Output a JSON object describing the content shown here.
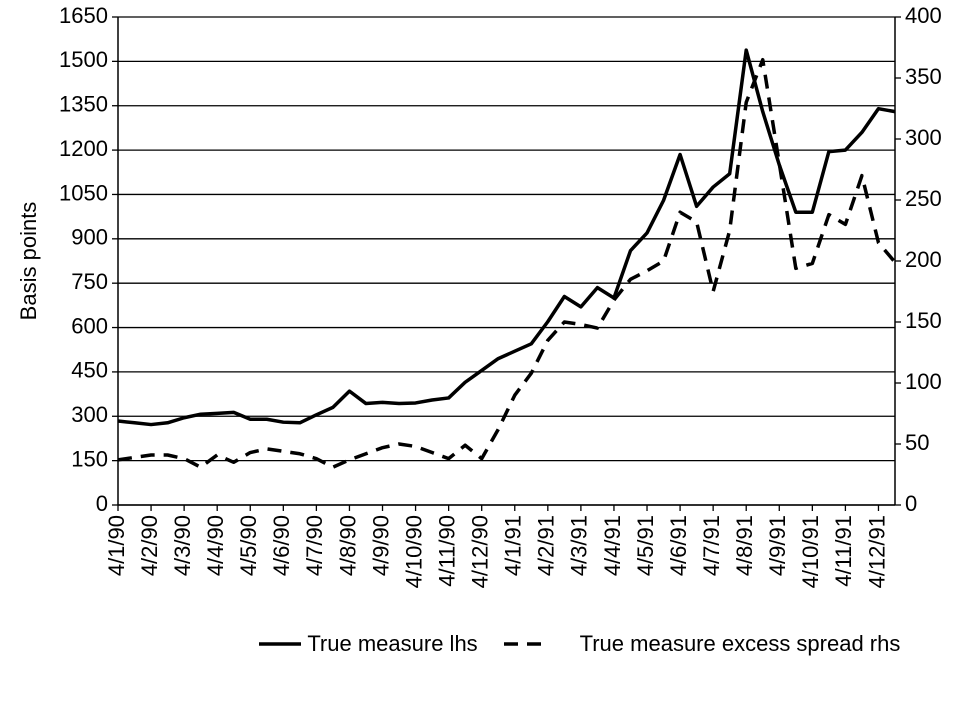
{
  "chart_data": {
    "type": "line",
    "ylabel": "Basis points",
    "x": [
      0,
      0.5,
      1,
      1.5,
      2,
      2.5,
      3,
      3.5,
      4,
      4.5,
      5,
      5.5,
      6,
      6.5,
      7,
      7.5,
      8,
      8.5,
      9,
      9.5,
      10,
      10.5,
      11,
      11.5,
      12,
      12.5,
      13,
      13.5,
      14,
      14.5,
      15,
      15.5,
      16,
      16.5,
      17,
      17.5,
      18,
      18.5,
      19,
      19.5,
      20,
      20.5,
      21,
      21.5,
      22,
      22.5,
      23,
      23.5
    ],
    "xlim": [
      0,
      23.5
    ],
    "xticks": [
      {
        "value": 0,
        "label": "4/1/90"
      },
      {
        "value": 1,
        "label": "4/2/90"
      },
      {
        "value": 2,
        "label": "4/3/90"
      },
      {
        "value": 3,
        "label": "4/4/90"
      },
      {
        "value": 4,
        "label": "4/5/90"
      },
      {
        "value": 5,
        "label": "4/6/90"
      },
      {
        "value": 6,
        "label": "4/7/90"
      },
      {
        "value": 7,
        "label": "4/8/90"
      },
      {
        "value": 8,
        "label": "4/9/90"
      },
      {
        "value": 9,
        "label": "4/10/90"
      },
      {
        "value": 10,
        "label": "4/11/90"
      },
      {
        "value": 11,
        "label": "4/12/90"
      },
      {
        "value": 12,
        "label": "4/1/91"
      },
      {
        "value": 13,
        "label": "4/2/91"
      },
      {
        "value": 14,
        "label": "4/3/91"
      },
      {
        "value": 15,
        "label": "4/4/91"
      },
      {
        "value": 16,
        "label": "4/5/91"
      },
      {
        "value": 17,
        "label": "4/6/91"
      },
      {
        "value": 18,
        "label": "4/7/91"
      },
      {
        "value": 19,
        "label": "4/8/91"
      },
      {
        "value": 20,
        "label": "4/9/91"
      },
      {
        "value": 21,
        "label": "4/10/91"
      },
      {
        "value": 22,
        "label": "4/11/91"
      },
      {
        "value": 23,
        "label": "4/12/91"
      }
    ],
    "ylim": [
      0,
      1650
    ],
    "yticks": [
      0,
      150,
      300,
      450,
      600,
      750,
      900,
      1050,
      1200,
      1350,
      1500,
      1650
    ],
    "y2lim": [
      0,
      400
    ],
    "y2ticks": [
      0,
      50,
      100,
      150,
      200,
      250,
      300,
      350,
      400
    ],
    "grid": true,
    "legend": "bottom",
    "series": [
      {
        "name": "True measure lhs",
        "color": "#000000",
        "dash": "solid",
        "values": [
          284,
          278,
          272,
          278,
          295,
          307,
          310,
          313,
          290,
          290,
          280,
          278,
          305,
          330,
          385,
          343,
          347,
          343,
          345,
          355,
          362,
          415,
          455,
          495,
          520,
          545,
          620,
          705,
          670,
          735,
          700,
          860,
          920,
          1030,
          1185,
          1010,
          1075,
          1120,
          1538,
          1330,
          1150,
          990,
          990,
          1195,
          1200,
          1260,
          1340,
          1330
        ]
      },
      {
        "name": "True measure excess spread rhs",
        "color": "#000000",
        "dash": "dashed",
        "axis": "y2",
        "values": [
          37,
          39,
          41,
          41,
          38,
          31,
          41,
          35,
          43,
          46,
          44,
          42,
          38,
          31,
          37,
          42,
          47,
          50,
          48,
          43,
          38,
          49,
          38,
          62,
          90,
          108,
          135,
          150,
          148,
          145,
          168,
          185,
          192,
          200,
          240,
          232,
          175,
          225,
          330,
          365,
          280,
          194,
          198,
          238,
          230,
          270,
          215,
          199
        ]
      }
    ]
  }
}
